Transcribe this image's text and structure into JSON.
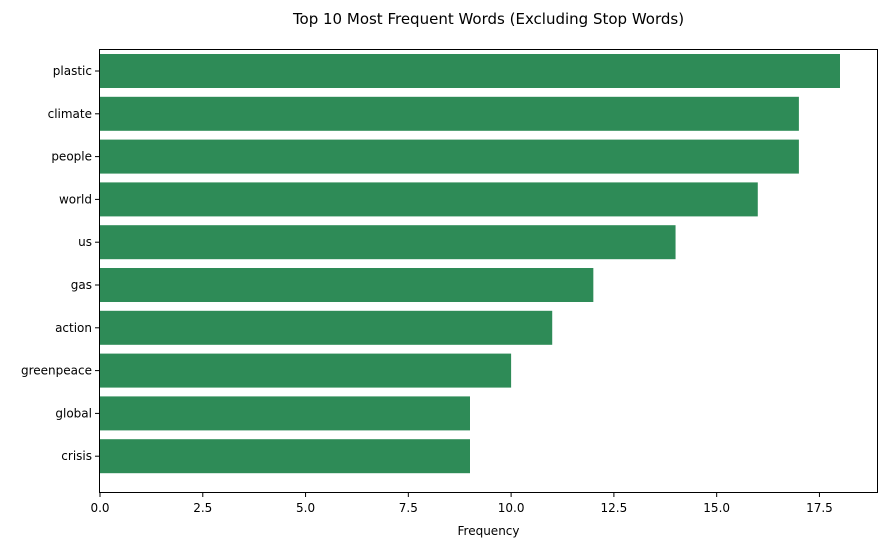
{
  "chart_data": {
    "type": "bar",
    "orientation": "horizontal",
    "title": "Top 10 Most Frequent Words (Excluding Stop Words)",
    "xlabel": "Frequency",
    "ylabel": "",
    "categories": [
      "plastic",
      "climate",
      "people",
      "world",
      "us",
      "gas",
      "action",
      "greenpeace",
      "global",
      "crisis"
    ],
    "values": [
      18,
      17,
      17,
      16,
      14,
      12,
      11,
      10,
      9,
      9
    ],
    "xlim": [
      0,
      18.9
    ],
    "xticks": [
      0,
      2.5,
      5,
      7.5,
      10,
      12.5,
      15,
      17.5
    ],
    "xtick_labels": [
      "0.0",
      "2.5",
      "5.0",
      "7.5",
      "10.0",
      "12.5",
      "15.0",
      "17.5"
    ],
    "bar_color": "#2e8b57",
    "grid": false,
    "legend": "none"
  }
}
